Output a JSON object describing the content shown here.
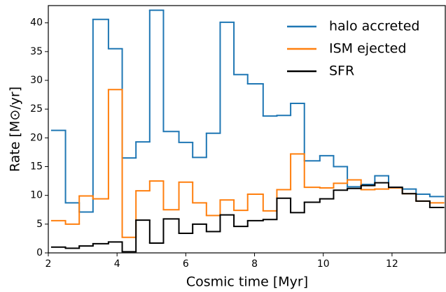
{
  "chart_data": {
    "type": "histogram",
    "xlabel": "Cosmic time [Myr]",
    "ylabel": "Rate [M⊙/yr]",
    "bins": [
      2.1,
      2.5,
      2.9,
      3.3,
      3.75,
      4.15,
      4.55,
      4.95,
      5.35,
      5.8,
      6.2,
      6.6,
      7.0,
      7.4,
      7.8,
      8.25,
      8.65,
      9.05,
      9.45,
      9.9,
      10.3,
      10.7,
      11.1,
      11.5,
      11.9,
      12.3,
      12.7,
      13.1,
      13.5
    ],
    "series": [
      {
        "name": "halo accreted",
        "color": "#1f77b4",
        "values": [
          21.3,
          8.7,
          7.1,
          40.6,
          35.5,
          16.5,
          19.3,
          42.2,
          21.1,
          19.2,
          16.6,
          20.8,
          40.1,
          31.0,
          29.4,
          23.8,
          23.9,
          26.0,
          16.0,
          16.9,
          15.0,
          11.5,
          11.9,
          13.4,
          11.4,
          11.1,
          10.2,
          9.8
        ]
      },
      {
        "name": "ISM ejected",
        "color": "#ff7f0e",
        "values": [
          5.6,
          5.0,
          9.9,
          9.4,
          28.4,
          2.7,
          10.8,
          12.5,
          7.5,
          12.3,
          8.7,
          6.5,
          9.2,
          7.4,
          10.2,
          7.3,
          11.0,
          17.2,
          11.4,
          11.3,
          12.1,
          12.7,
          11.0,
          11.1,
          11.3,
          10.3,
          9.0,
          8.7
        ]
      },
      {
        "name": "SFR",
        "color": "#000000",
        "values": [
          1.0,
          0.8,
          1.2,
          1.6,
          1.9,
          0.2,
          5.7,
          1.7,
          5.9,
          3.4,
          5.0,
          3.7,
          6.6,
          4.6,
          5.6,
          5.8,
          9.5,
          7.0,
          8.8,
          9.4,
          10.9,
          11.2,
          11.7,
          12.2,
          11.4,
          10.3,
          9.0,
          7.9
        ]
      }
    ],
    "xlim": [
      2.0,
      13.55
    ],
    "ylim": [
      0,
      43
    ],
    "xticks": [
      2,
      4,
      6,
      8,
      10,
      12
    ],
    "yticks": [
      0,
      5,
      10,
      15,
      20,
      25,
      30,
      35,
      40
    ],
    "legend": "upper right",
    "grid": false
  }
}
